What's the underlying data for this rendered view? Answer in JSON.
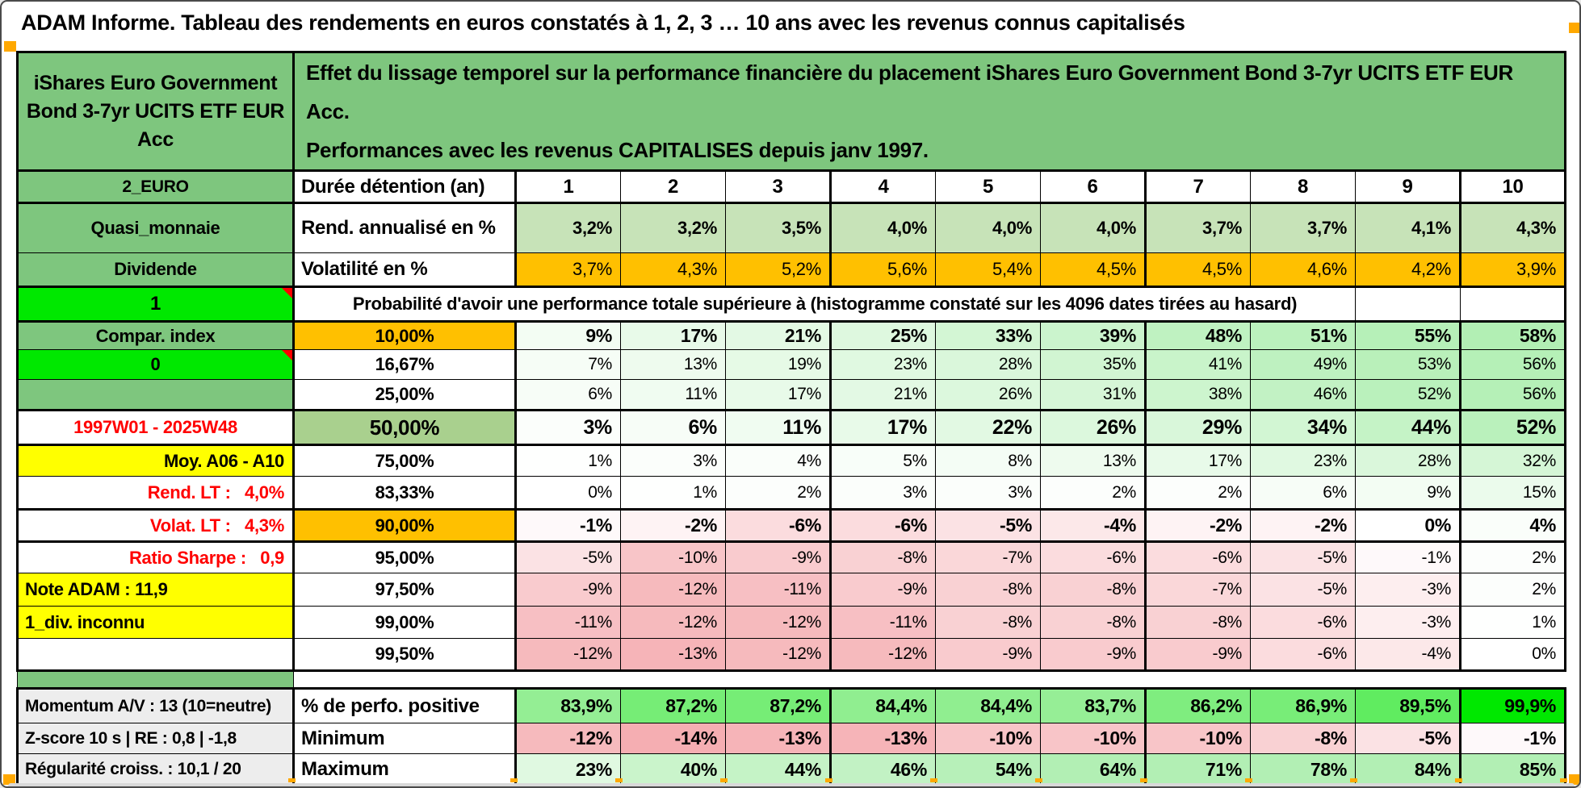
{
  "sheet_title": "ADAM Informe. Tableau des rendements en euros constatés à 1, 2, 3 … 10 ans avec les revenus connus capitalisés",
  "colors": {
    "header_green": "#7EC67E",
    "band_green": "#A9D08E",
    "pale_green": "#C7E3B8",
    "orange": "#FFC000",
    "bright_green": "#00E800",
    "yellow": "#FFFF00",
    "red_text": "#FF0000",
    "gray_cell": "#EDEDED",
    "white": "#FFFFFF",
    "matrix_green_max": "#B2EFB4",
    "matrix_pink_max": "#F5AEB2",
    "perfo_green_min": "#98EE98",
    "perfo_green_max": "#00E800",
    "page_orange": "#FFA800",
    "scrollbar_gray": "#D9D9D9"
  },
  "header": {
    "fund_name": "iShares Euro Government Bond 3-7yr UCITS ETF EUR Acc",
    "description": "Effet du lissage temporel sur la performance financière du placement iShares Euro Government Bond 3-7yr UCITS ETF EUR Acc.\nPerformances avec les revenus CAPITALISES depuis janv 1997."
  },
  "duration_row": {
    "left": "2_EURO",
    "label": "Durée détention (an)",
    "durations": [
      "1",
      "2",
      "3",
      "4",
      "5",
      "6",
      "7",
      "8",
      "9",
      "10"
    ]
  },
  "annualized_return": {
    "left": "Quasi_monnaie",
    "label": "Rend. annualisé en %",
    "values": [
      "3,2%",
      "3,2%",
      "3,5%",
      "4,0%",
      "4,0%",
      "4,0%",
      "3,7%",
      "3,7%",
      "4,1%",
      "4,3%"
    ]
  },
  "volatility": {
    "left": "Dividende",
    "label": "Volatilité en %",
    "values": [
      "3,7%",
      "4,3%",
      "5,2%",
      "5,6%",
      "5,4%",
      "4,5%",
      "4,5%",
      "4,6%",
      "4,2%",
      "3,9%"
    ]
  },
  "probability": {
    "left_flag": "1",
    "span_text": "Probabilité d'avoir une performance totale supérieure à (histogramme constaté sur les 4096 dates tirées au hasard)",
    "rows": [
      {
        "name": "comparison-index-cell",
        "left": "Compar. index",
        "left_bg": "header_green",
        "left_fg": "black",
        "left_align": "c",
        "threshold": "10,00%",
        "threshold_bg": "orange",
        "bold": true,
        "values": [
          "9%",
          "17%",
          "21%",
          "25%",
          "33%",
          "39%",
          "48%",
          "51%",
          "55%",
          "58%"
        ]
      },
      {
        "name": "indicator-zero-cell",
        "left": "0",
        "left_bg": "bright_green",
        "left_fg": "black",
        "left_align": "c",
        "left_comment": true,
        "threshold": "16,67%",
        "threshold_bg": "white",
        "bold": false,
        "values": [
          "7%",
          "13%",
          "19%",
          "23%",
          "28%",
          "35%",
          "41%",
          "49%",
          "53%",
          "56%"
        ]
      },
      {
        "name": "blank-green-cell",
        "left": "",
        "left_bg": "header_green",
        "left_fg": "black",
        "left_align": "c",
        "threshold": "25,00%",
        "threshold_bg": "white",
        "bold": false,
        "values": [
          "6%",
          "11%",
          "17%",
          "21%",
          "26%",
          "31%",
          "38%",
          "46%",
          "52%",
          "56%"
        ]
      },
      {
        "name": "period-range-cell",
        "left": "1997W01 - 2025W48",
        "left_bg": "white",
        "left_fg": "red_text",
        "left_align": "c",
        "threshold": "50,00%",
        "threshold_bg": "band_green",
        "bold": true,
        "big": true,
        "values": [
          "3%",
          "6%",
          "11%",
          "17%",
          "22%",
          "26%",
          "29%",
          "34%",
          "44%",
          "52%"
        ]
      },
      {
        "name": "average-note-cell",
        "left": "Moy. A06 - A10",
        "left_bg": "yellow",
        "left_fg": "black",
        "left_align": "r",
        "threshold": "75,00%",
        "threshold_bg": "white",
        "bold": false,
        "values": [
          "1%",
          "3%",
          "4%",
          "5%",
          "8%",
          "13%",
          "17%",
          "23%",
          "28%",
          "32%"
        ]
      },
      {
        "name": "long-term-return-cell",
        "left": "Rend. LT :   4,0%",
        "left_bg": "white",
        "left_fg": "red_text",
        "left_align": "r",
        "threshold": "83,33%",
        "threshold_bg": "white",
        "bold": false,
        "values": [
          "0%",
          "1%",
          "2%",
          "3%",
          "3%",
          "2%",
          "2%",
          "6%",
          "9%",
          "15%"
        ]
      },
      {
        "name": "long-term-volatility-cell",
        "left": "Volat. LT :   4,3%",
        "left_bg": "white",
        "left_fg": "red_text",
        "left_align": "r",
        "threshold": "90,00%",
        "threshold_bg": "orange",
        "bold": true,
        "values": [
          "-1%",
          "-2%",
          "-6%",
          "-6%",
          "-5%",
          "-4%",
          "-2%",
          "-2%",
          "0%",
          "4%"
        ]
      },
      {
        "name": "sharpe-ratio-cell",
        "left": "Ratio Sharpe :   0,9",
        "left_bg": "white",
        "left_fg": "red_text",
        "left_align": "r",
        "threshold": "95,00%",
        "threshold_bg": "white",
        "bold": false,
        "values": [
          "-5%",
          "-10%",
          "-9%",
          "-8%",
          "-7%",
          "-6%",
          "-6%",
          "-5%",
          "-1%",
          "2%"
        ]
      },
      {
        "name": "adam-score-cell",
        "left": "Note ADAM : 11,9",
        "left_bg": "yellow",
        "left_fg": "black",
        "left_align": "l",
        "threshold": "97,50%",
        "threshold_bg": "white",
        "bold": false,
        "values": [
          "-9%",
          "-12%",
          "-11%",
          "-9%",
          "-8%",
          "-8%",
          "-7%",
          "-5%",
          "-3%",
          "2%"
        ]
      },
      {
        "name": "dividend-note-cell",
        "left": "1_div. inconnu",
        "left_bg": "yellow",
        "left_fg": "black",
        "left_align": "l",
        "threshold": "99,00%",
        "threshold_bg": "white",
        "bold": false,
        "values": [
          "-11%",
          "-12%",
          "-12%",
          "-11%",
          "-8%",
          "-8%",
          "-8%",
          "-6%",
          "-3%",
          "1%"
        ]
      },
      {
        "name": "blank-cell",
        "left": "",
        "left_bg": "white",
        "left_fg": "black",
        "left_align": "c",
        "threshold": "99,50%",
        "threshold_bg": "white",
        "bold": false,
        "values": [
          "-12%",
          "-13%",
          "-12%",
          "-12%",
          "-9%",
          "-9%",
          "-9%",
          "-6%",
          "-4%",
          "0%"
        ]
      }
    ]
  },
  "summary": {
    "rows": [
      {
        "name": "momentum-cell",
        "left": "Momentum A/V : 13 (10=neutre)",
        "label": "% de perfo. positive",
        "style": "perfo",
        "values": [
          "83,9%",
          "87,2%",
          "87,2%",
          "84,4%",
          "84,4%",
          "83,7%",
          "86,2%",
          "86,9%",
          "89,5%",
          "99,9%"
        ]
      },
      {
        "name": "zscore-cell",
        "left": "Z-score 10 s  |  RE : 0,8  |  -1,8",
        "label": "Minimum",
        "style": "neg",
        "values": [
          "-12%",
          "-14%",
          "-13%",
          "-13%",
          "-10%",
          "-10%",
          "-10%",
          "-8%",
          "-5%",
          "-1%"
        ]
      },
      {
        "name": "regularity-cell",
        "left": "Régularité croiss. : 10,1 / 20",
        "label": "Maximum",
        "style": "pos",
        "values": [
          "23%",
          "40%",
          "44%",
          "46%",
          "54%",
          "64%",
          "71%",
          "78%",
          "84%",
          "85%"
        ]
      }
    ]
  }
}
